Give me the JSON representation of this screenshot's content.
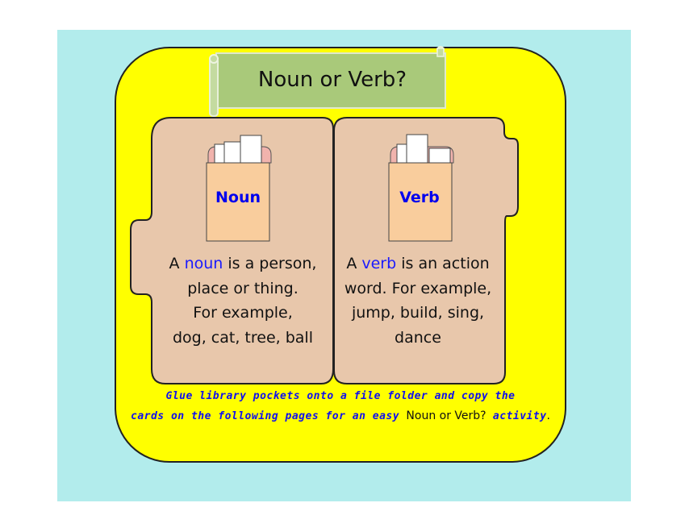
{
  "title": "Noun or Verb?",
  "left_pocket": {
    "label": "Noun",
    "desc_a": "A ",
    "desc_keyword": "noun",
    "desc_b": " is a person,",
    "desc_line2": "place or thing.",
    "desc_line3": "For example,",
    "desc_line4": "dog, cat, tree, ball"
  },
  "right_pocket": {
    "label": "Verb",
    "desc_a": "A ",
    "desc_keyword": "verb",
    "desc_b": " is an action",
    "desc_line2": "word.  For example,",
    "desc_line3": "jump, build, sing,",
    "desc_line4": "dance"
  },
  "note": {
    "line1": "Glue library pockets onto a file folder and copy the",
    "line2_a": "cards on the following pages for an easy ",
    "line2_name": "Noun or Verb?",
    "line2_b": " activity",
    "line2_end": "."
  },
  "colors": {
    "cyan": "#b2ecec",
    "yellow": "#ffff00",
    "folder": "#e8c7ab",
    "banner": "#a9c97a",
    "pocket": "#f9cd9d",
    "pocket_top": "#f1b3ad",
    "keyword": "#1a1aff"
  }
}
